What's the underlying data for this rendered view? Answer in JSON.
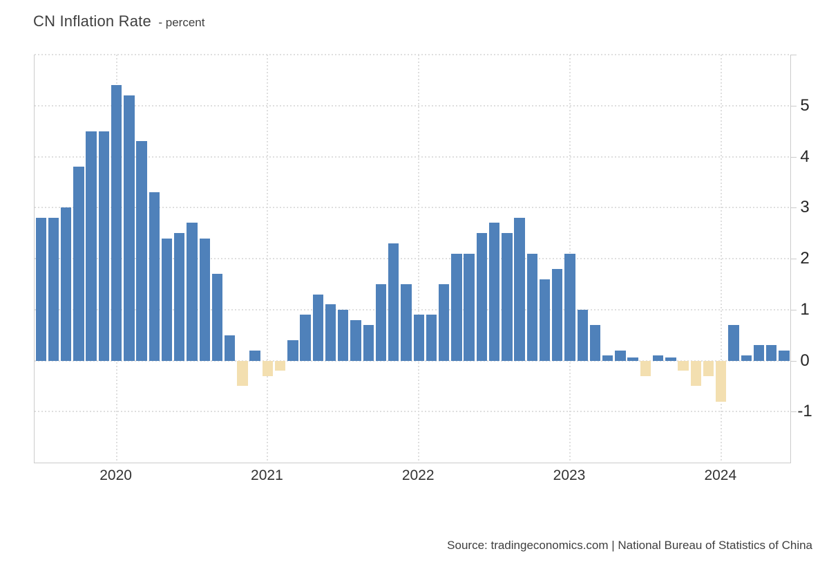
{
  "title": {
    "main": "CN Inflation Rate",
    "subtitle": "- percent"
  },
  "source": {
    "text": "Source: tradingeconomics.com | National Bureau of Statistics of China"
  },
  "chart_data": {
    "type": "bar",
    "title": "CN Inflation Rate",
    "unit": "percent",
    "x": [
      "2019-07",
      "2019-08",
      "2019-09",
      "2019-10",
      "2019-11",
      "2019-12",
      "2020-01",
      "2020-02",
      "2020-03",
      "2020-04",
      "2020-05",
      "2020-06",
      "2020-07",
      "2020-08",
      "2020-09",
      "2020-10",
      "2020-11",
      "2020-12",
      "2021-01",
      "2021-02",
      "2021-03",
      "2021-04",
      "2021-05",
      "2021-06",
      "2021-07",
      "2021-08",
      "2021-09",
      "2021-10",
      "2021-11",
      "2021-12",
      "2022-01",
      "2022-02",
      "2022-03",
      "2022-04",
      "2022-05",
      "2022-06",
      "2022-07",
      "2022-08",
      "2022-09",
      "2022-10",
      "2022-11",
      "2022-12",
      "2023-01",
      "2023-02",
      "2023-03",
      "2023-04",
      "2023-05",
      "2023-06",
      "2023-07",
      "2023-08",
      "2023-09",
      "2023-10",
      "2023-11",
      "2023-12",
      "2024-01",
      "2024-02",
      "2024-03",
      "2024-04",
      "2024-05",
      "2024-06"
    ],
    "values": [
      2.8,
      2.8,
      3.0,
      3.8,
      4.5,
      4.5,
      5.4,
      5.2,
      4.3,
      3.3,
      2.4,
      2.5,
      2.7,
      2.4,
      1.7,
      0.5,
      -0.5,
      0.2,
      -0.3,
      -0.2,
      0.4,
      0.9,
      1.3,
      1.1,
      1.0,
      0.8,
      0.7,
      1.5,
      2.3,
      1.5,
      0.9,
      0.9,
      1.5,
      2.1,
      2.1,
      2.5,
      2.7,
      2.5,
      2.8,
      2.1,
      1.6,
      1.8,
      2.1,
      1.0,
      0.7,
      0.1,
      0.2,
      0.0,
      -0.3,
      0.1,
      0.0,
      -0.2,
      -0.5,
      -0.3,
      -0.8,
      0.7,
      0.1,
      0.3,
      0.3,
      0.2
    ],
    "x_tick_labels": [
      "2020",
      "2021",
      "2022",
      "2023",
      "2024"
    ],
    "x_tick_months": [
      "2020-01",
      "2021-01",
      "2022-01",
      "2023-01",
      "2024-01"
    ],
    "y_tick_labels": [
      "5",
      "4",
      "3",
      "2",
      "1",
      "0",
      "-1"
    ],
    "y_ticks": [
      5,
      4,
      3,
      2,
      1,
      0,
      -1
    ],
    "ylim": [
      -2,
      6
    ],
    "xlabel": "",
    "ylabel": "percent",
    "grid": "dotted",
    "y_axis_side": "right",
    "legend_position": "none",
    "bar_color_positive": "#4f81ba",
    "bar_color_negative": "#f3dfb0"
  }
}
